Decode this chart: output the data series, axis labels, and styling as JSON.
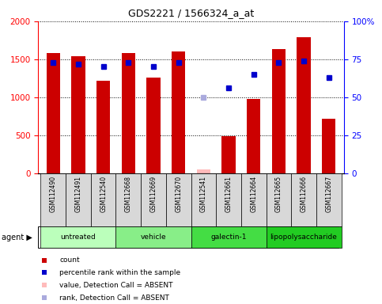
{
  "title": "GDS2221 / 1566324_a_at",
  "samples": [
    "GSM112490",
    "GSM112491",
    "GSM112540",
    "GSM112668",
    "GSM112669",
    "GSM112670",
    "GSM112541",
    "GSM112661",
    "GSM112664",
    "GSM112665",
    "GSM112666",
    "GSM112667"
  ],
  "bar_values": [
    1580,
    1540,
    1220,
    1580,
    1260,
    1600,
    50,
    490,
    980,
    1630,
    1790,
    720
  ],
  "bar_absent": [
    false,
    false,
    false,
    false,
    false,
    false,
    true,
    false,
    false,
    false,
    false,
    false
  ],
  "rank_values": [
    73,
    72,
    70,
    73,
    70,
    73,
    50,
    56,
    65,
    73,
    74,
    63
  ],
  "rank_absent": [
    false,
    false,
    false,
    false,
    false,
    false,
    true,
    false,
    false,
    false,
    false,
    false
  ],
  "agents": [
    {
      "label": "untreated",
      "start": 0,
      "end": 3,
      "color": "#bbffbb"
    },
    {
      "label": "vehicle",
      "start": 3,
      "end": 6,
      "color": "#88ee88"
    },
    {
      "label": "galectin-1",
      "start": 6,
      "end": 9,
      "color": "#44dd44"
    },
    {
      "label": "lipopolysaccharide",
      "start": 9,
      "end": 12,
      "color": "#22cc22"
    }
  ],
  "ylim_left": [
    0,
    2000
  ],
  "ylim_right": [
    0,
    100
  ],
  "yticks_left": [
    0,
    500,
    1000,
    1500,
    2000
  ],
  "yticks_right": [
    0,
    25,
    50,
    75,
    100
  ],
  "bar_color": "#cc0000",
  "bar_absent_color": "#ffbbbb",
  "rank_color": "#0000cc",
  "rank_absent_color": "#aaaadd",
  "grid_color": "black",
  "sample_box_color": "#d8d8d8"
}
